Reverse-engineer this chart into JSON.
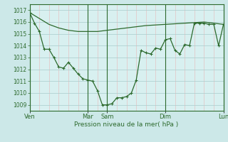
{
  "background_color": "#cce8e8",
  "plot_bg_color": "#d8f0f0",
  "grid_color": "#a8cccc",
  "minor_grid_color": "#e8b8b8",
  "line_color": "#2d6a2d",
  "xlabel": "Pression niveau de la mer( hPa )",
  "ylim": [
    1008.5,
    1017.5
  ],
  "yticks": [
    1009,
    1010,
    1011,
    1012,
    1013,
    1014,
    1015,
    1016,
    1017
  ],
  "xlim": [
    0,
    240
  ],
  "xtick_labels": [
    "Ven",
    "Mar",
    "Sam",
    "Dim",
    "Lun"
  ],
  "xtick_positions": [
    0,
    72,
    96,
    168,
    240
  ],
  "vline_positions": [
    0,
    72,
    96,
    168,
    240
  ],
  "line1_x": [
    0,
    12,
    24,
    36,
    48,
    60,
    72,
    84,
    96,
    108,
    120,
    132,
    144,
    156,
    168,
    180,
    192,
    204,
    216,
    228,
    240
  ],
  "line1_y": [
    1016.8,
    1016.3,
    1015.8,
    1015.5,
    1015.3,
    1015.2,
    1015.2,
    1015.2,
    1015.3,
    1015.4,
    1015.5,
    1015.6,
    1015.7,
    1015.75,
    1015.8,
    1015.85,
    1015.9,
    1015.95,
    1016.0,
    1015.9,
    1015.8
  ],
  "line2_x": [
    0,
    6,
    12,
    18,
    24,
    30,
    36,
    42,
    48,
    54,
    60,
    66,
    72,
    78,
    84,
    90,
    96,
    102,
    108,
    114,
    120,
    126,
    132,
    138,
    144,
    150,
    156,
    162,
    168,
    174,
    180,
    186,
    192,
    198,
    204,
    210,
    216,
    222,
    228,
    234,
    240
  ],
  "line2_y": [
    1016.8,
    1015.9,
    1015.2,
    1013.7,
    1013.7,
    1013.0,
    1012.2,
    1012.1,
    1012.6,
    1012.1,
    1011.6,
    1011.2,
    1011.1,
    1011.0,
    1010.2,
    1009.0,
    1009.0,
    1009.1,
    1009.6,
    1009.6,
    1009.7,
    1010.0,
    1011.1,
    1013.6,
    1013.4,
    1013.3,
    1013.8,
    1013.7,
    1014.5,
    1014.6,
    1013.6,
    1013.3,
    1014.1,
    1014.0,
    1015.9,
    1015.9,
    1015.9,
    1015.8,
    1015.8,
    1014.0,
    1015.8
  ]
}
